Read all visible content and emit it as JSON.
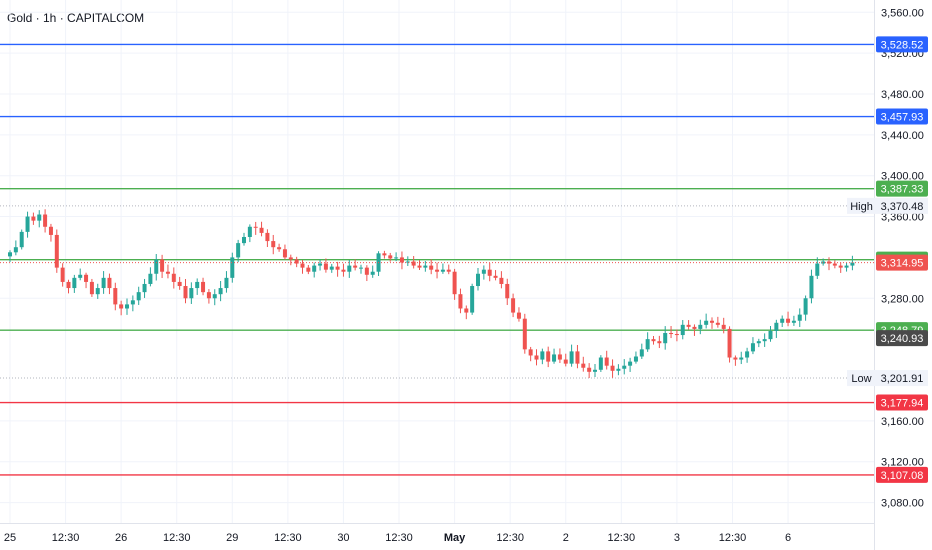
{
  "header": {
    "title": "Gold · 1h · CAPITALCOM"
  },
  "colors": {
    "up": "#26a69a",
    "down": "#ef5350",
    "grid": "#f0f3fa",
    "blue": "#2962ff",
    "green": "#4caf50",
    "red": "#f23645",
    "dark": "#4a4a4a",
    "dotted": "#b2b5be"
  },
  "chart_data": {
    "type": "candlestick",
    "title": "Gold · 1h · CAPITALCOM",
    "xlabel": "",
    "ylabel": "",
    "ylim": [
      3060,
      3572
    ],
    "grid": true,
    "y_ticks": [
      "3,560.00",
      "3,520.00",
      "3,480.00",
      "3,440.00",
      "3,400.00",
      "3,360.00",
      "3,280.00",
      "3,160.00",
      "3,120.00",
      "3,080.00"
    ],
    "x_ticks": [
      {
        "label": "25",
        "x": 0
      },
      {
        "label": "12:30",
        "x": 9.5
      },
      {
        "label": "26",
        "x": 19
      },
      {
        "label": "12:30",
        "x": 28.5
      },
      {
        "label": "29",
        "x": 38
      },
      {
        "label": "12:30",
        "x": 47.5
      },
      {
        "label": "30",
        "x": 57
      },
      {
        "label": "12:30",
        "x": 66.5
      },
      {
        "label": "May",
        "x": 76
      },
      {
        "label": "12:30",
        "x": 85.5
      },
      {
        "label": "2",
        "x": 95
      },
      {
        "label": "12:30",
        "x": 104.5
      },
      {
        "label": "3",
        "x": 114
      },
      {
        "label": "12:30",
        "x": 123.5
      },
      {
        "label": "6",
        "x": 133
      }
    ],
    "levels": [
      {
        "value": 3528.52,
        "label": "3,528.52",
        "color": "blue"
      },
      {
        "value": 3457.93,
        "label": "3,457.93",
        "color": "blue"
      },
      {
        "value": 3387.33,
        "label": "3,387.33",
        "color": "green"
      },
      {
        "value": 3317.8,
        "label": "3,317.80",
        "color": "green"
      },
      {
        "value": 3248.79,
        "label": "3,248.79",
        "color": "green"
      },
      {
        "value": 3177.94,
        "label": "3,177.94",
        "color": "red"
      },
      {
        "value": 3107.08,
        "label": "3,107.08",
        "color": "red"
      }
    ],
    "high": {
      "value": 3370.48,
      "label": "3,370.48",
      "tag": "High"
    },
    "low": {
      "value": 3201.91,
      "label": "3,201.91",
      "tag": "Low"
    },
    "last_price": {
      "value": 3314.95,
      "label": "3,314.95"
    },
    "marker": {
      "value": 3240.93,
      "label": "3,240.93"
    },
    "closes": [
      3325,
      3330,
      3345,
      3360,
      3356,
      3362,
      3350,
      3342,
      3310,
      3296,
      3290,
      3300,
      3303,
      3296,
      3284,
      3290,
      3300,
      3290,
      3274,
      3270,
      3274,
      3278,
      3286,
      3294,
      3304,
      3318,
      3306,
      3304,
      3296,
      3292,
      3280,
      3290,
      3296,
      3286,
      3280,
      3284,
      3290,
      3300,
      3320,
      3334,
      3340,
      3350,
      3349,
      3344,
      3336,
      3330,
      3328,
      3320,
      3318,
      3314,
      3310,
      3306,
      3312,
      3314,
      3308,
      3311,
      3308,
      3306,
      3312,
      3310,
      3310,
      3303,
      3306,
      3324,
      3322,
      3319,
      3320,
      3315,
      3316,
      3312,
      3310,
      3312,
      3308,
      3306,
      3308,
      3306,
      3284,
      3270,
      3266,
      3292,
      3304,
      3308,
      3302,
      3300,
      3294,
      3280,
      3266,
      3260,
      3230,
      3224,
      3220,
      3228,
      3218,
      3225,
      3220,
      3216,
      3228,
      3216,
      3212,
      3208,
      3210,
      3222,
      3214,
      3209,
      3211,
      3214,
      3218,
      3223,
      3230,
      3240,
      3238,
      3236,
      3246,
      3245,
      3244,
      3254,
      3252,
      3250,
      3254,
      3258,
      3256,
      3254,
      3250,
      3222,
      3220,
      3222,
      3228,
      3236,
      3238,
      3240,
      3248,
      3256,
      3260,
      3256,
      3258,
      3264,
      3280,
      3302,
      3314,
      3316,
      3314,
      3312,
      3310,
      3312,
      3315
    ]
  }
}
